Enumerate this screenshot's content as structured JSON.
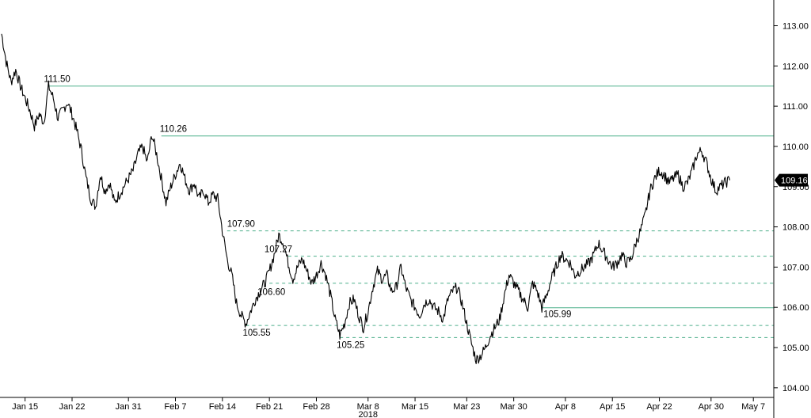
{
  "chart_data": {
    "type": "line",
    "title": "",
    "xlabel": "",
    "ylabel": "",
    "x_year_label": "2018",
    "ylim": [
      103.8,
      113.6
    ],
    "y_ticks": [
      "113.00",
      "112.00",
      "111.00",
      "110.00",
      "109.00",
      "108.00",
      "107.00",
      "106.00",
      "105.00",
      "104.00"
    ],
    "y_tick_values": [
      113,
      112,
      111,
      110,
      109,
      108,
      107,
      106,
      105,
      104
    ],
    "x_ticks": [
      "Jan 15",
      "Jan 22",
      "Jan 31",
      "Feb 7",
      "Feb 14",
      "Feb 21",
      "Feb 28",
      "Mar 8",
      "Mar 15",
      "Mar 23",
      "Mar 30",
      "Apr 8",
      "Apr 15",
      "Apr 22",
      "Apr 30",
      "May 7"
    ],
    "x_tick_index": [
      5,
      15,
      27,
      37,
      47,
      57,
      67,
      78,
      88,
      99,
      109,
      120,
      130,
      140,
      151,
      160
    ],
    "n_points": 164,
    "grid": false,
    "last_price": "109.16",
    "colors": {
      "line": "#000000",
      "level": "#4caf8a",
      "tag_bg": "#000000",
      "axis": "#000000"
    },
    "resistance_levels": [
      {
        "value": 111.5,
        "label": "111.50",
        "start_index": 10,
        "style": "solid"
      },
      {
        "value": 110.26,
        "label": "110.26",
        "start_index": 34,
        "style": "solid"
      }
    ],
    "support_levels": [
      {
        "value": 107.9,
        "label": "107.90",
        "start_index": 48,
        "style": "dashed"
      },
      {
        "value": 107.27,
        "label": "107.27",
        "start_index": 61,
        "style": "dashed"
      },
      {
        "value": 106.6,
        "label": "106.60",
        "start_index": 57,
        "style": "dashed"
      },
      {
        "value": 105.99,
        "label": "105.99",
        "start_index": 115,
        "style": "solid"
      },
      {
        "value": 105.55,
        "label": "105.55",
        "start_index": 52,
        "style": "dashed"
      },
      {
        "value": 105.25,
        "label": "105.25",
        "start_index": 72,
        "style": "dashed"
      }
    ],
    "series": [
      {
        "values": [
          112.8,
          112.1,
          111.6,
          111.9,
          111.5,
          111.2,
          110.9,
          110.5,
          110.8,
          110.6,
          111.5,
          111.2,
          110.7,
          110.9,
          111.1,
          110.8,
          110.4,
          109.9,
          109.2,
          108.7,
          108.5,
          109.3,
          108.9,
          109.1,
          108.6,
          108.8,
          109.0,
          109.2,
          109.4,
          109.8,
          110.0,
          109.6,
          110.3,
          109.8,
          109.2,
          108.6,
          109.0,
          109.3,
          109.6,
          109.2,
          108.9,
          109.1,
          108.7,
          108.9,
          108.6,
          108.8,
          108.7,
          107.9,
          107.2,
          106.8,
          106.1,
          105.8,
          105.6,
          105.9,
          106.2,
          106.4,
          106.6,
          106.9,
          107.3,
          107.8,
          107.6,
          107.1,
          106.7,
          107.0,
          107.2,
          106.9,
          106.6,
          106.8,
          107.1,
          106.8,
          106.3,
          105.7,
          105.3,
          105.6,
          106.1,
          106.2,
          105.8,
          105.5,
          105.9,
          106.5,
          106.9,
          106.7,
          106.8,
          106.4,
          106.5,
          107.0,
          106.5,
          106.2,
          106.0,
          105.8,
          106.1,
          106.2,
          106.0,
          105.9,
          105.7,
          106.2,
          106.4,
          106.5,
          106.1,
          105.6,
          105.1,
          104.7,
          104.8,
          105.0,
          105.3,
          105.5,
          105.7,
          106.3,
          106.8,
          106.6,
          106.4,
          106.2,
          106.0,
          106.6,
          106.4,
          105.99,
          106.3,
          106.7,
          107.0,
          107.3,
          107.2,
          107.1,
          106.8,
          106.9,
          107.0,
          107.1,
          107.3,
          107.6,
          107.4,
          107.2,
          107.0,
          107.1,
          107.3,
          107.1,
          107.2,
          107.6,
          107.9,
          108.3,
          108.9,
          109.2,
          109.4,
          109.3,
          109.1,
          109.2,
          109.3,
          109.0,
          109.1,
          109.4,
          109.8,
          109.9,
          109.6,
          109.2,
          108.9,
          109.0,
          109.1,
          109.16
        ]
      }
    ]
  }
}
